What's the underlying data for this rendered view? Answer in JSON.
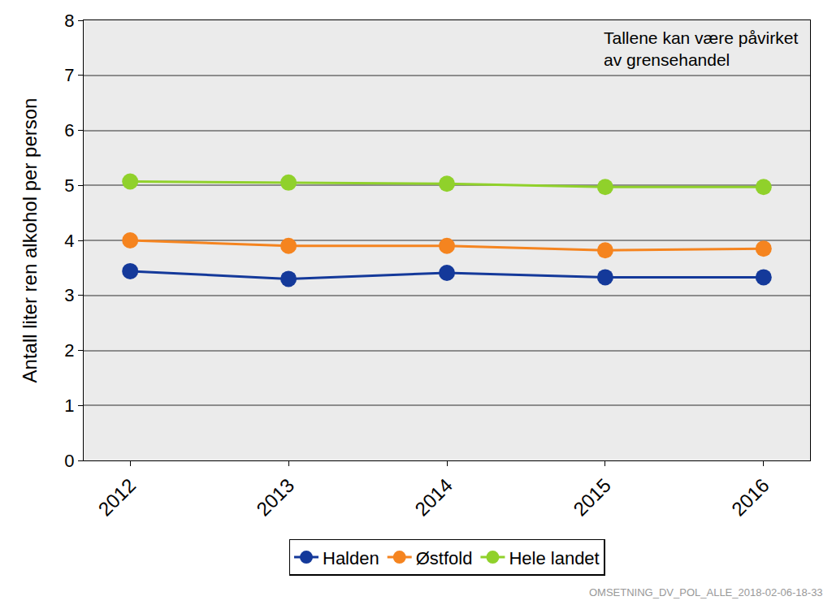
{
  "chart_data": {
    "type": "line",
    "y_label": "Antall liter ren alkohol per person",
    "categories": [
      "2012",
      "2013",
      "2014",
      "2015",
      "2016"
    ],
    "series": [
      {
        "name": "Halden",
        "color": "#14399a",
        "values": [
          3.44,
          3.3,
          3.41,
          3.33,
          3.33
        ]
      },
      {
        "name": "Østfold",
        "color": "#f5841f",
        "values": [
          4.0,
          3.9,
          3.9,
          3.82,
          3.85
        ]
      },
      {
        "name": "Hele landet",
        "color": "#90d12b",
        "values": [
          5.07,
          5.05,
          5.03,
          4.97,
          4.97
        ]
      }
    ],
    "annotations": [
      "Tallene kan være påvirket\nav grensehandel",
      "OMSETNING_DV_POL_ALLE_2018-02-06-18-33"
    ],
    "ylim": [
      0,
      8
    ],
    "yticks": [
      0,
      1,
      2,
      3,
      4,
      5,
      6,
      7,
      8
    ],
    "grid": true,
    "legend": "bottom",
    "marker": "circle"
  }
}
